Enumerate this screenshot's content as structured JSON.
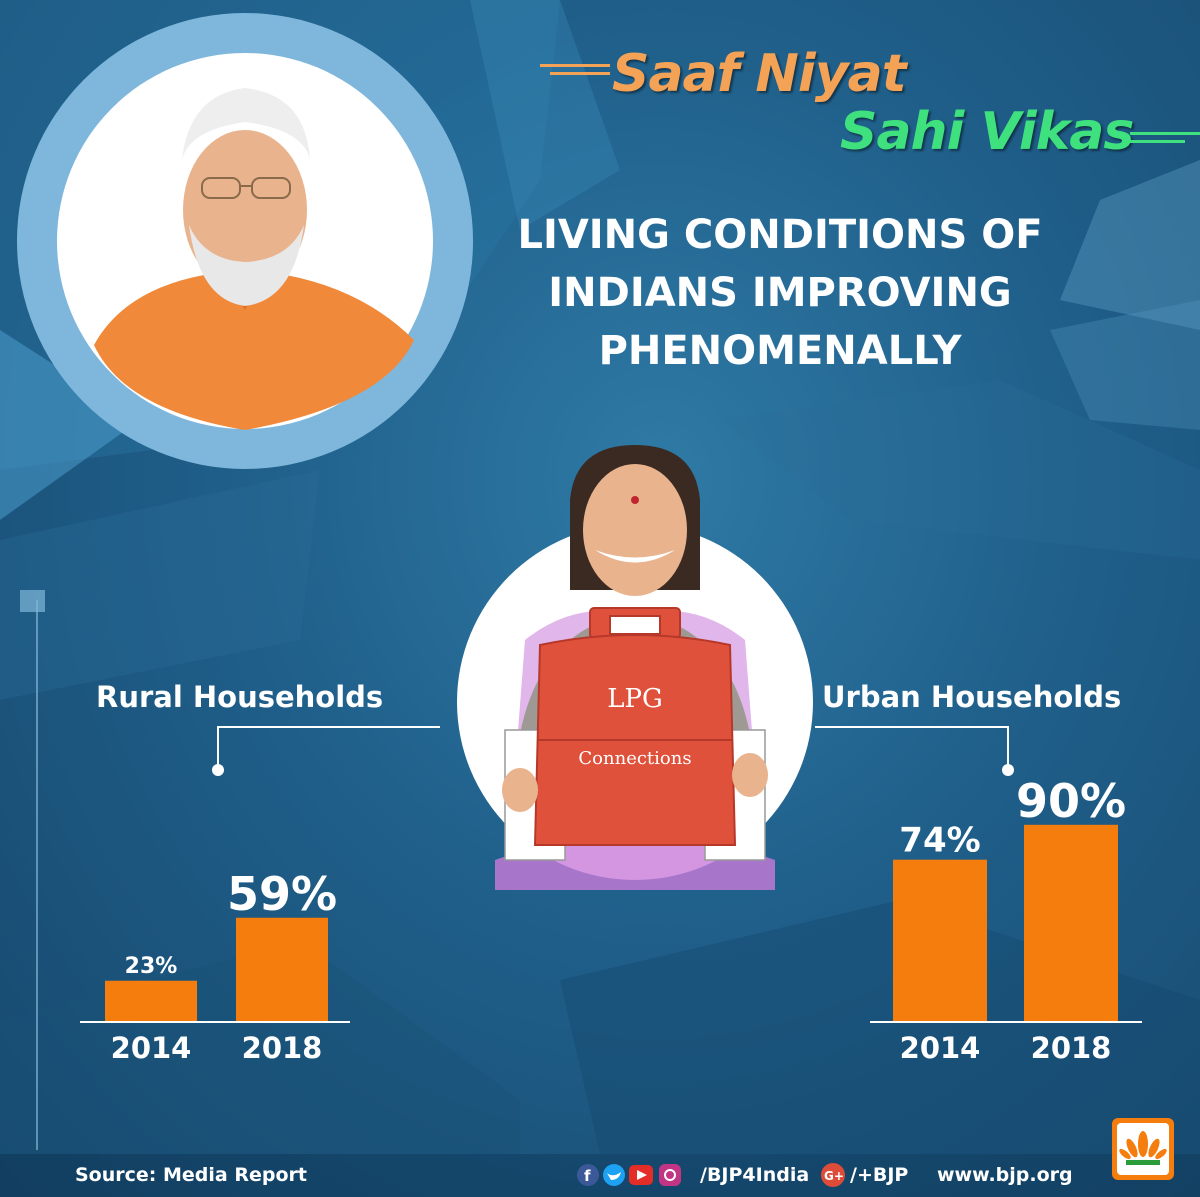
{
  "tagline": {
    "line1": "Saaf Niyat",
    "line2": "Sahi Vikas"
  },
  "headline": [
    "LIVING CONDITIONS OF",
    "INDIANS IMPROVING",
    "PHENOMENALLY"
  ],
  "illustration": {
    "sign_line1": "LPG",
    "sign_line2": "Connections"
  },
  "colors": {
    "bar": "#f47d0d",
    "tagline1": "#f4a255",
    "tagline2": "#3fe07e",
    "background": "#1f5f8a"
  },
  "chart_data": [
    {
      "type": "bar",
      "title": "Rural Households",
      "categories": [
        "2014",
        "2018"
      ],
      "values": [
        23,
        59
      ],
      "value_labels": [
        "23%",
        "59%"
      ],
      "ylim": [
        0,
        100
      ],
      "grid": false
    },
    {
      "type": "bar",
      "title": "Urban Households",
      "categories": [
        "2014",
        "2018"
      ],
      "values": [
        74,
        90
      ],
      "value_labels": [
        "74%",
        "90%"
      ],
      "ylim": [
        0,
        100
      ],
      "grid": false
    }
  ],
  "footer": {
    "source": "Source: Media Report",
    "handle": "/BJP4India",
    "gplus": "/+BJP",
    "site": "www.bjp.org"
  }
}
